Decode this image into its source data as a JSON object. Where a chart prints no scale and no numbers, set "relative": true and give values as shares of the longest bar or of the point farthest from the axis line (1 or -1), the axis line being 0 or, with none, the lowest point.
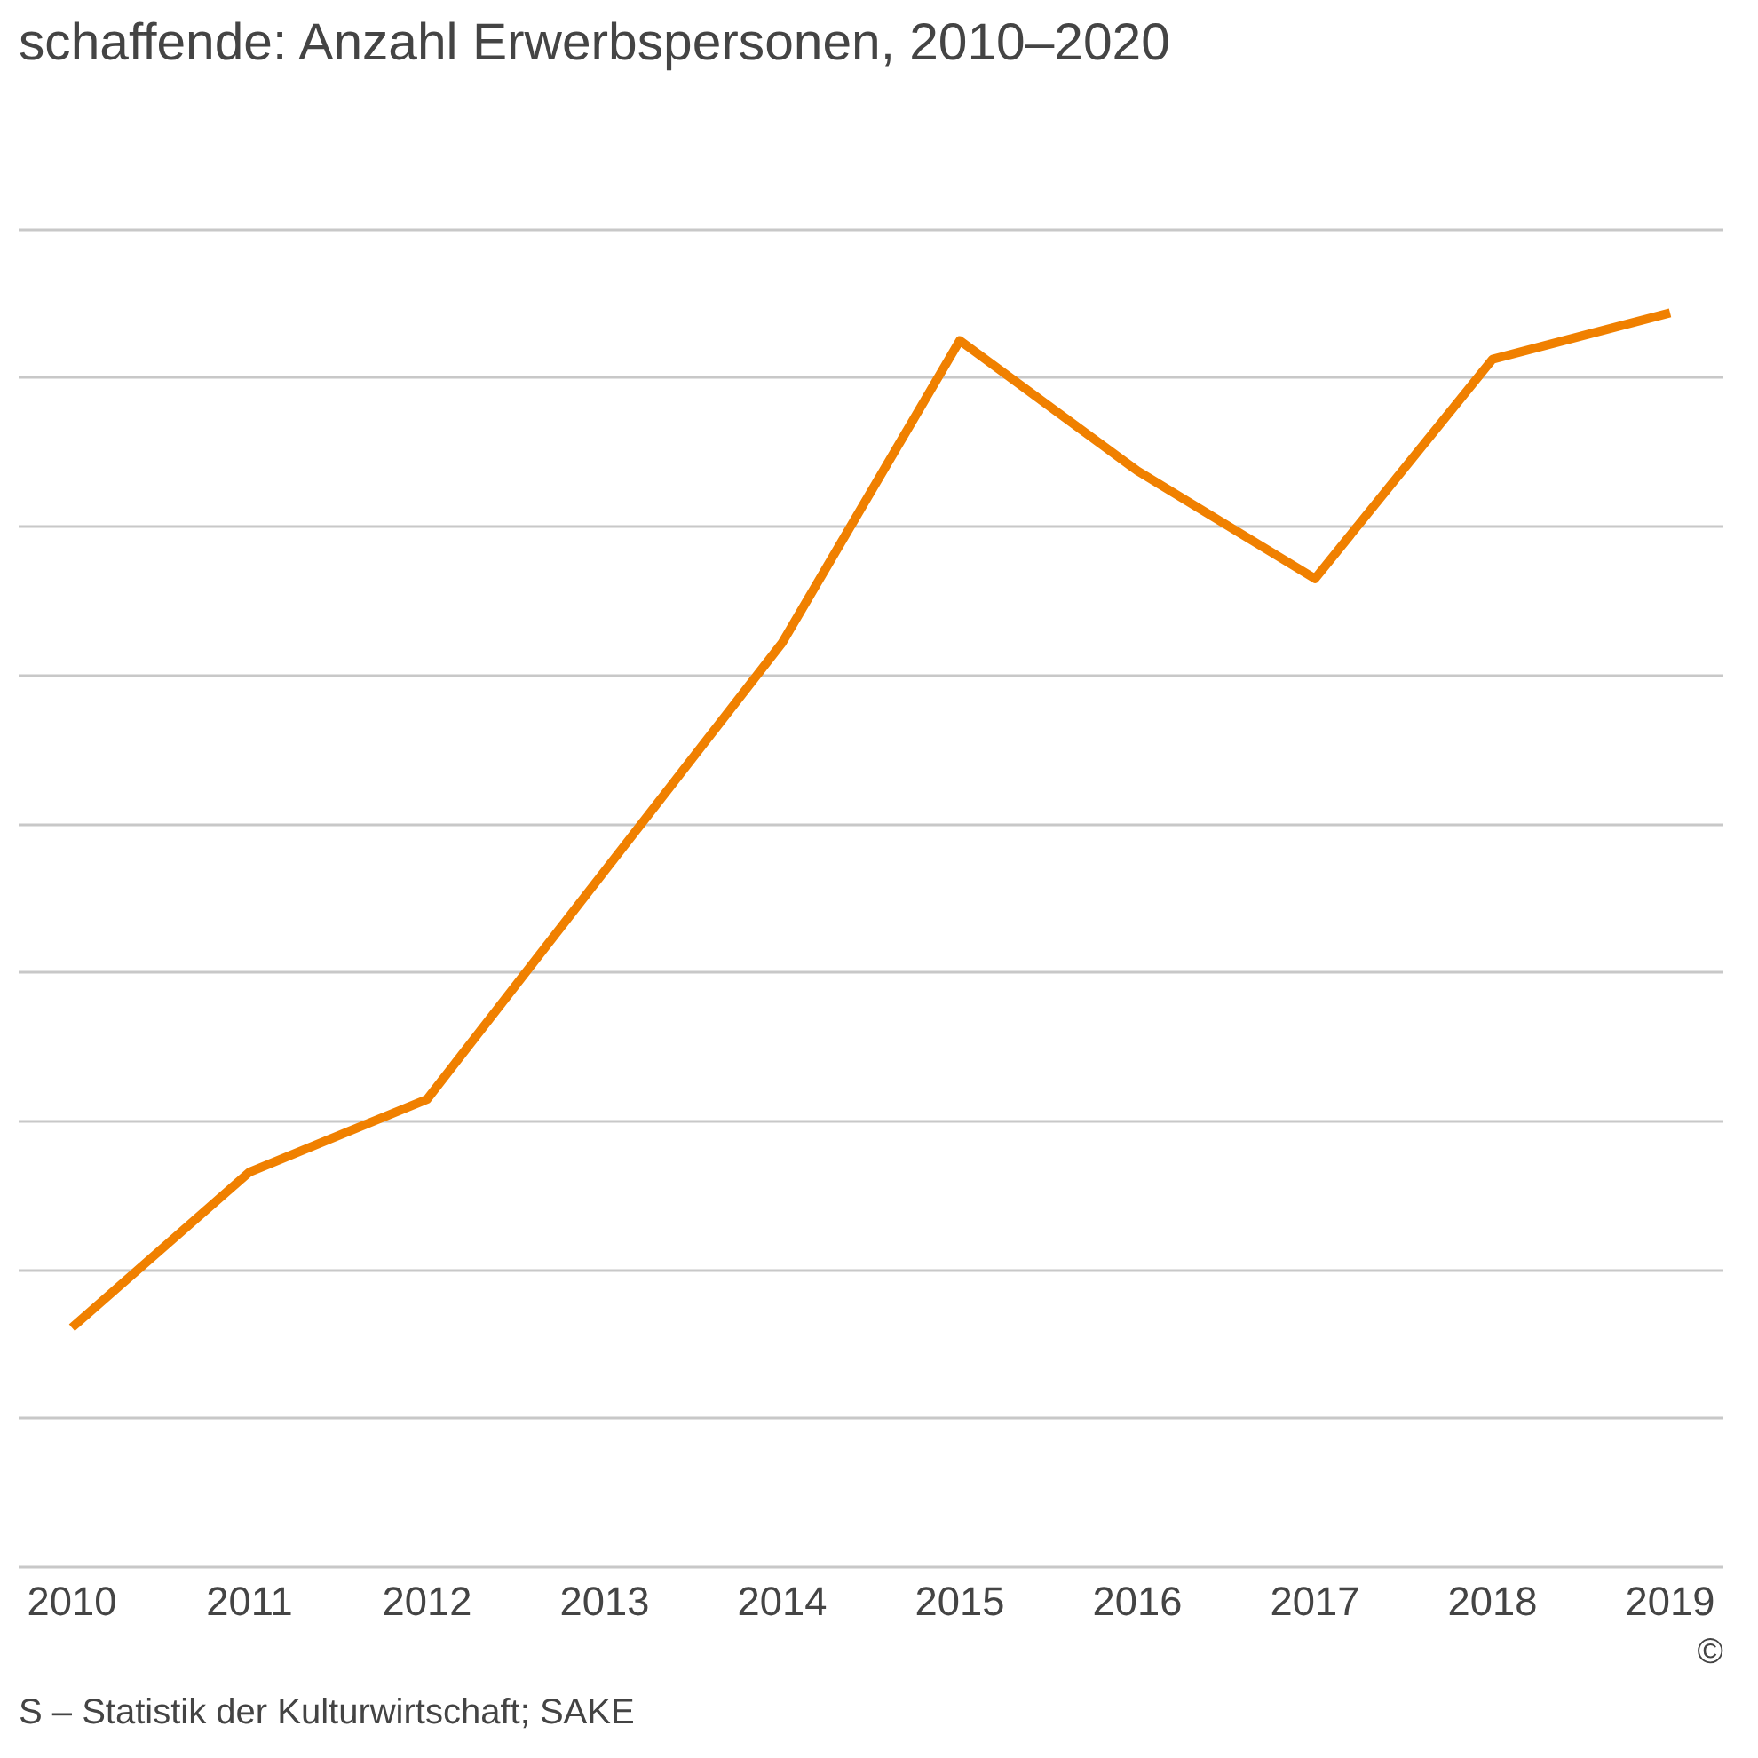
{
  "chart_data": {
    "type": "line",
    "title": "schaffende: Anzahl Erwerbspersonen, 2010–2020",
    "relative": true,
    "categories": [
      "2010",
      "2011",
      "2012",
      "2013",
      "2014",
      "2015",
      "2016",
      "2017",
      "2018",
      "2019"
    ],
    "series": [
      {
        "color": "#f08000",
        "values": [
          0.191,
          0.315,
          0.373,
          0.555,
          0.737,
          0.978,
          0.874,
          0.788,
          0.963,
          1
        ]
      }
    ],
    "grid": "y",
    "line_style": "solid",
    "annotations": [
      "S – Statistik der Kulturwirtschaft; SAKE",
      "©"
    ]
  }
}
